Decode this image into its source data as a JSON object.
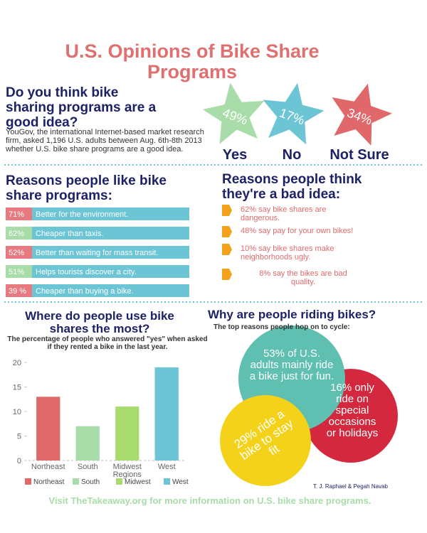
{
  "header": {
    "title": "U.S. Opinions of Bike Share Programs"
  },
  "poll": {
    "question": "Do you think bike sharing programs are a good idea?",
    "description": "YouGov, the international Internet-based market research firm, asked 1,196 U.S. adults between Aug. 6th-8th 2013 whether U.S. bike share programs are a good idea.",
    "answers": [
      {
        "value": "49%",
        "label": "Yes",
        "color": "#a8dca8"
      },
      {
        "value": "17%",
        "label": "No",
        "color": "#6cc5d5"
      },
      {
        "value": "34%",
        "label": "Not Sure",
        "color": "#e0686a"
      }
    ]
  },
  "likes": {
    "heading": "Reasons people like bike share programs:",
    "items": [
      {
        "percent": "71%",
        "text": "Better for the environment.",
        "color": "#e77a80"
      },
      {
        "percent": "62%",
        "text": "Cheaper than taxis.",
        "color": "#a8dca8"
      },
      {
        "percent": "52%",
        "text": "Better than waiting for mass transit.",
        "color": "#e77a80"
      },
      {
        "percent": "51%",
        "text": "Helps tourists discover a city.",
        "color": "#a8dca8"
      },
      {
        "percent": "39 %",
        "text": "Cheaper than buying a bike.",
        "color": "#e77a80"
      }
    ]
  },
  "dislikes": {
    "heading": "Reasons people think they're a bad idea:",
    "items": [
      "62% say bike shares are dangerous.",
      "48% say pay for your own bikes!",
      "10% say bike shares make neighborhoods ugly.",
      "8% say the bikes are bad quality."
    ]
  },
  "chart_data": {
    "type": "bar",
    "title": "Where do people use bike shares the most?",
    "subtitle": "The percentage of people who answered \"yes\" when asked if they rented a bike in the last year.",
    "x_label": "Regions",
    "categories": [
      "Northeast",
      "South",
      "Midwest",
      "West"
    ],
    "values": [
      13,
      7,
      11,
      19
    ],
    "colors": [
      "#e06a6a",
      "#a8dca8",
      "#a8dc70",
      "#6cc5d5"
    ],
    "ylim": [
      0,
      20
    ],
    "yticks": [
      0,
      5,
      10,
      15,
      20
    ],
    "legend": "bottom"
  },
  "riding": {
    "heading": "Why are people riding bikes?",
    "subheading": "The top reasons people hop on to cycle:",
    "reasons": [
      {
        "text": "16% only ride on special occasions or holidays",
        "color": "#d3283e"
      },
      {
        "text": "53% of U.S. adults mainly ride a bike just for fun.",
        "color": "#5fbfb0"
      },
      {
        "text": "29% ride a bike to stay fit",
        "color": "#f5d21a"
      }
    ]
  },
  "credit": "T. J. Raphael & Pegah Navab",
  "footer": "Visit TheTakeaway.org for more information on U.S. bike share programs."
}
